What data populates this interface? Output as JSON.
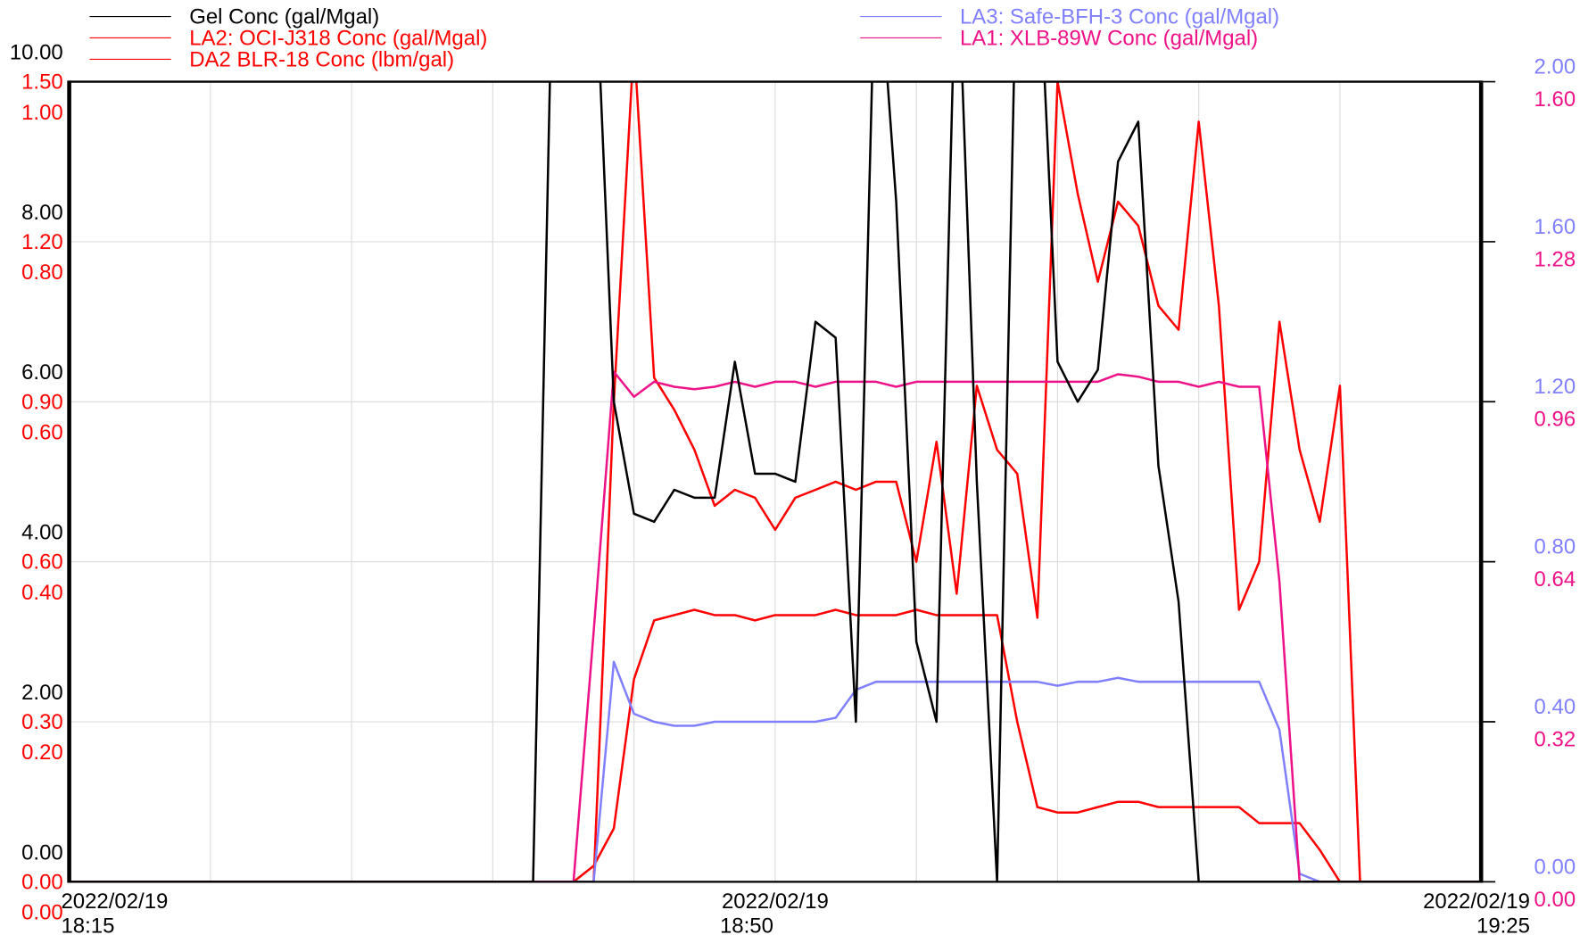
{
  "chart_data": {
    "type": "line",
    "x": [
      "18:15",
      "18:16",
      "18:17",
      "18:18",
      "18:19",
      "18:20",
      "18:21",
      "18:22",
      "18:23",
      "18:24",
      "18:25",
      "18:26",
      "18:27",
      "18:28",
      "18:29",
      "18:30",
      "18:31",
      "18:32",
      "18:33",
      "18:34",
      "18:35",
      "18:36",
      "18:37",
      "18:38",
      "18:39",
      "18:40",
      "18:41",
      "18:42",
      "18:43",
      "18:44",
      "18:45",
      "18:46",
      "18:47",
      "18:48",
      "18:49",
      "18:50",
      "18:51",
      "18:52",
      "18:53",
      "18:54",
      "18:55",
      "18:56",
      "18:57",
      "18:58",
      "18:59",
      "19:00",
      "19:01",
      "19:02",
      "19:03",
      "19:04",
      "19:05",
      "19:06",
      "19:07",
      "19:08",
      "19:09",
      "19:10",
      "19:11",
      "19:12",
      "19:13",
      "19:14",
      "19:15",
      "19:16",
      "19:17",
      "19:18",
      "19:19",
      "19:20",
      "19:21",
      "19:22",
      "19:23",
      "19:24",
      "19:25"
    ],
    "xlim": [
      "18:15",
      "19:25"
    ],
    "xticks": [
      {
        "value": "18:15",
        "label": "2022/02/19 18:15"
      },
      {
        "value": "18:50",
        "label": "2022/02/19 18:50"
      },
      {
        "value": "19:25",
        "label": "2022/02/19 19:25"
      }
    ],
    "minor_xticks": [
      "18:22",
      "18:29",
      "18:36",
      "18:43",
      "18:57",
      "19:04",
      "19:11",
      "19:18"
    ],
    "grid": true,
    "y_axes": [
      {
        "color": "#000000",
        "ylim": [
          0,
          10
        ],
        "yticks": [
          {
            "value": 0,
            "label": "0.00"
          },
          {
            "value": 2,
            "label": "2.00"
          },
          {
            "value": 4,
            "label": "4.00"
          },
          {
            "value": 6,
            "label": "6.00"
          },
          {
            "value": 8,
            "label": "8.00"
          },
          {
            "value": 10,
            "label": "10.00"
          }
        ]
      },
      {
        "color": "#ff0000",
        "ylim": [
          0,
          1.5
        ],
        "yticks": [
          {
            "value": 0,
            "label": "0.00"
          },
          {
            "value": 0.3,
            "label": "0.30"
          },
          {
            "value": 0.6,
            "label": "0.60"
          },
          {
            "value": 0.9,
            "label": "0.90"
          },
          {
            "value": 1.2,
            "label": "1.20"
          },
          {
            "value": 1.5,
            "label": "1.50"
          }
        ]
      },
      {
        "color": "#ff0000",
        "ylim": [
          0,
          1
        ],
        "yticks": [
          {
            "value": 0,
            "label": "0.00"
          },
          {
            "value": 0.2,
            "label": "0.20"
          },
          {
            "value": 0.4,
            "label": "0.40"
          },
          {
            "value": 0.6,
            "label": "0.60"
          },
          {
            "value": 0.8,
            "label": "0.80"
          },
          {
            "value": 1,
            "label": "1.00"
          }
        ]
      },
      {
        "color": "#8080ff",
        "ylim": [
          0,
          2
        ],
        "yticks": [
          {
            "value": 0,
            "label": "0.00"
          },
          {
            "value": 0.4,
            "label": "0.40"
          },
          {
            "value": 0.8,
            "label": "0.80"
          },
          {
            "value": 1.2,
            "label": "1.20"
          },
          {
            "value": 1.6,
            "label": "1.60"
          },
          {
            "value": 2,
            "label": "2.00"
          }
        ]
      },
      {
        "color": "#ee1288",
        "ylim": [
          0,
          1.6
        ],
        "yticks": [
          {
            "value": 0,
            "label": "0.00"
          },
          {
            "value": 0.32,
            "label": "0.32"
          },
          {
            "value": 0.64,
            "label": "0.64"
          },
          {
            "value": 0.96,
            "label": "0.96"
          },
          {
            "value": 1.28,
            "label": "1.28"
          },
          {
            "value": 1.6,
            "label": "1.60"
          }
        ]
      }
    ],
    "series": [
      {
        "name": "Gel Conc (gal/Mgal)",
        "color": "#000000",
        "axis": 0,
        "values": [
          0,
          0,
          0,
          0,
          0,
          0,
          0,
          0,
          0,
          0,
          0,
          0,
          0,
          0,
          0,
          0,
          0,
          0,
          0,
          0,
          0,
          0,
          0,
          0,
          12,
          12,
          12,
          6.0,
          4.6,
          4.5,
          4.9,
          4.8,
          4.8,
          6.5,
          5.1,
          5.1,
          5.0,
          7.0,
          6.8,
          2.0,
          12,
          8.5,
          3.0,
          2.0,
          12,
          5.0,
          0,
          12,
          12,
          6.5,
          6.0,
          6.4,
          9.0,
          9.5,
          5.2,
          3.5,
          0,
          0,
          0,
          0,
          0,
          0,
          0,
          0,
          0,
          0,
          0,
          0,
          0,
          0,
          0
        ]
      },
      {
        "name": "LA2: OCI-J318 Conc (gal/Mgal)",
        "color": "#ff0000",
        "axis": 1,
        "values": [
          0,
          0,
          0,
          0,
          0,
          0,
          0,
          0,
          0,
          0,
          0,
          0,
          0,
          0,
          0,
          0,
          0,
          0,
          0,
          0,
          0,
          0,
          0,
          0,
          0,
          0,
          0.03,
          0.1,
          0.38,
          0.49,
          0.5,
          0.51,
          0.5,
          0.5,
          0.49,
          0.5,
          0.5,
          0.5,
          0.51,
          0.5,
          0.5,
          0.5,
          0.51,
          0.5,
          0.5,
          0.5,
          0.5,
          0.3,
          0.14,
          0.13,
          0.13,
          0.14,
          0.15,
          0.15,
          0.14,
          0.14,
          0.14,
          0.14,
          0.14,
          0.11,
          0.11,
          0.11,
          0.06,
          0,
          0,
          0,
          0,
          0,
          0,
          0,
          0
        ]
      },
      {
        "name": "DA2 BLR-18 Conc (lbm/gal)",
        "color": "#ff0000",
        "axis": 2,
        "values": [
          0,
          0,
          0,
          0,
          0,
          0,
          0,
          0,
          0,
          0,
          0,
          0,
          0,
          0,
          0,
          0,
          0,
          0,
          0,
          0,
          0,
          0,
          0,
          0,
          0,
          0,
          0,
          0.6,
          1.05,
          0.63,
          0.59,
          0.54,
          0.47,
          0.49,
          0.48,
          0.44,
          0.48,
          0.49,
          0.5,
          0.49,
          0.5,
          0.5,
          0.4,
          0.55,
          0.36,
          0.62,
          0.54,
          0.51,
          0.33,
          1.0,
          0.86,
          0.75,
          0.85,
          0.82,
          0.72,
          0.69,
          0.95,
          0.72,
          0.34,
          0.4,
          0.7,
          0.54,
          0.45,
          0.62,
          0,
          0,
          0,
          0,
          0,
          0,
          0
        ]
      },
      {
        "name": "LA3: Safe-BFH-3 Conc (gal/Mgal)",
        "color": "#8080ff",
        "axis": 3,
        "values": [
          0,
          0,
          0,
          0,
          0,
          0,
          0,
          0,
          0,
          0,
          0,
          0,
          0,
          0,
          0,
          0,
          0,
          0,
          0,
          0,
          0,
          0,
          0,
          0,
          0,
          0,
          0,
          0.55,
          0.42,
          0.4,
          0.39,
          0.39,
          0.4,
          0.4,
          0.4,
          0.4,
          0.4,
          0.4,
          0.41,
          0.48,
          0.5,
          0.5,
          0.5,
          0.5,
          0.5,
          0.5,
          0.5,
          0.5,
          0.5,
          0.49,
          0.5,
          0.5,
          0.51,
          0.5,
          0.5,
          0.5,
          0.5,
          0.5,
          0.5,
          0.5,
          0.38,
          0.02,
          0,
          0,
          0,
          0,
          0,
          0,
          0,
          0,
          0
        ]
      },
      {
        "name": "LA1: XLB-89W Conc (gal/Mgal)",
        "color": "#ee1288",
        "axis": 4,
        "values": [
          0,
          0,
          0,
          0,
          0,
          0,
          0,
          0,
          0,
          0,
          0,
          0,
          0,
          0,
          0,
          0,
          0,
          0,
          0,
          0,
          0,
          0,
          0,
          0,
          0,
          0,
          0.5,
          1.02,
          0.97,
          1.0,
          0.99,
          0.985,
          0.99,
          1.0,
          0.99,
          1.0,
          1.0,
          0.99,
          1.0,
          1.0,
          1.0,
          0.99,
          1.0,
          1.0,
          1.0,
          1.0,
          1.0,
          1.0,
          1.0,
          1.0,
          1.0,
          1.0,
          1.015,
          1.01,
          1.0,
          1.0,
          0.99,
          1.0,
          0.99,
          0.99,
          0.6,
          0,
          0,
          0,
          0,
          0,
          0,
          0,
          0,
          0,
          0
        ]
      }
    ]
  }
}
